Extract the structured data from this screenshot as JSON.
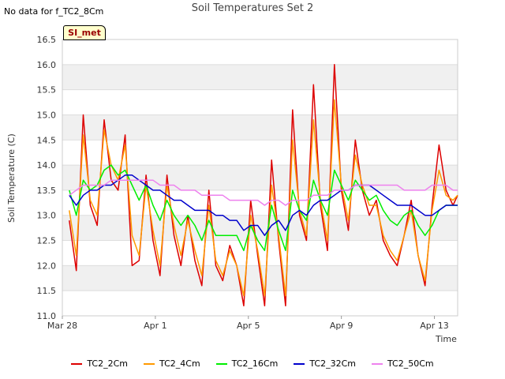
{
  "header": {
    "no_data_text": "No data for f_TC2_8Cm",
    "site_badge": "SI_met"
  },
  "chart_data": {
    "type": "line",
    "title": "Soil Temperatures Set 2",
    "xlabel": "Time",
    "ylabel": "Soil Temperature (C)",
    "ylim": [
      11.0,
      16.5
    ],
    "xlim_days": [
      0,
      17
    ],
    "yticks": [
      "11.0",
      "11.5",
      "12.0",
      "12.5",
      "13.0",
      "13.5",
      "14.0",
      "14.5",
      "15.0",
      "15.5",
      "16.0",
      "16.5"
    ],
    "xticks": [
      {
        "day": 0,
        "label": "Mar 28"
      },
      {
        "day": 4,
        "label": "Apr 1"
      },
      {
        "day": 8,
        "label": "Apr 5"
      },
      {
        "day": 12,
        "label": "Apr 9"
      },
      {
        "day": 16,
        "label": "Apr 13"
      }
    ],
    "grid": true,
    "legend_position": "bottom",
    "x_days": [
      0.3,
      0.6,
      0.9,
      1.2,
      1.5,
      1.8,
      2.1,
      2.4,
      2.7,
      3.0,
      3.3,
      3.6,
      3.9,
      4.2,
      4.5,
      4.8,
      5.1,
      5.4,
      5.7,
      6.0,
      6.3,
      6.6,
      6.9,
      7.2,
      7.5,
      7.8,
      8.1,
      8.4,
      8.7,
      9.0,
      9.3,
      9.6,
      9.9,
      10.2,
      10.5,
      10.8,
      11.1,
      11.4,
      11.7,
      12.0,
      12.3,
      12.6,
      12.9,
      13.2,
      13.5,
      13.8,
      14.1,
      14.4,
      14.7,
      15.0,
      15.3,
      15.6,
      15.9,
      16.2,
      16.5,
      16.8,
      17.0
    ],
    "series": [
      {
        "name": "TC2_2Cm",
        "color": "#dd0000",
        "values": [
          12.9,
          11.9,
          15.0,
          13.2,
          12.8,
          14.9,
          13.7,
          13.5,
          14.6,
          12.0,
          12.1,
          13.8,
          12.5,
          11.8,
          13.8,
          12.6,
          12.0,
          13.0,
          12.1,
          11.6,
          13.5,
          12.0,
          11.7,
          12.4,
          12.0,
          11.2,
          13.3,
          12.2,
          11.2,
          14.1,
          12.5,
          11.2,
          15.1,
          13.0,
          12.5,
          15.6,
          13.2,
          12.3,
          16.0,
          13.5,
          12.7,
          14.5,
          13.5,
          13.0,
          13.3,
          12.5,
          12.2,
          12.0,
          12.6,
          13.3,
          12.2,
          11.6,
          13.2,
          14.4,
          13.5,
          13.2,
          13.4
        ]
      },
      {
        "name": "TC2_4Cm",
        "color": "#ff9900",
        "values": [
          13.1,
          12.2,
          14.6,
          13.3,
          13.0,
          14.7,
          14.0,
          13.7,
          14.4,
          12.6,
          12.2,
          13.6,
          12.7,
          12.0,
          13.6,
          12.8,
          12.2,
          12.9,
          12.3,
          11.8,
          13.2,
          12.1,
          11.8,
          12.3,
          12.0,
          11.4,
          13.0,
          12.3,
          11.4,
          13.6,
          12.6,
          11.4,
          14.5,
          13.1,
          12.6,
          14.9,
          13.3,
          12.5,
          15.3,
          13.6,
          12.9,
          14.2,
          13.6,
          13.2,
          13.2,
          12.6,
          12.3,
          12.1,
          12.6,
          13.1,
          12.2,
          11.7,
          13.1,
          13.9,
          13.4,
          13.3,
          13.4
        ]
      },
      {
        "name": "TC2_16Cm",
        "color": "#00ee00",
        "values": [
          13.5,
          13.0,
          13.7,
          13.5,
          13.6,
          13.9,
          14.0,
          13.8,
          13.9,
          13.6,
          13.3,
          13.6,
          13.2,
          12.9,
          13.3,
          13.0,
          12.8,
          13.0,
          12.8,
          12.5,
          12.9,
          12.6,
          12.6,
          12.6,
          12.6,
          12.3,
          12.8,
          12.5,
          12.3,
          13.2,
          12.7,
          12.3,
          13.5,
          13.1,
          12.9,
          13.7,
          13.3,
          13.0,
          13.9,
          13.6,
          13.3,
          13.7,
          13.5,
          13.3,
          13.4,
          13.1,
          12.9,
          12.8,
          13.0,
          13.1,
          12.8,
          12.6,
          12.8,
          13.1,
          13.2,
          13.2,
          13.2
        ]
      },
      {
        "name": "TC2_32Cm",
        "color": "#0000cc",
        "values": [
          13.4,
          13.2,
          13.4,
          13.5,
          13.5,
          13.6,
          13.6,
          13.7,
          13.8,
          13.8,
          13.7,
          13.6,
          13.5,
          13.5,
          13.4,
          13.3,
          13.3,
          13.2,
          13.1,
          13.1,
          13.1,
          13.0,
          13.0,
          12.9,
          12.9,
          12.7,
          12.8,
          12.8,
          12.6,
          12.8,
          12.9,
          12.7,
          13.0,
          13.1,
          13.0,
          13.2,
          13.3,
          13.3,
          13.4,
          13.5,
          13.5,
          13.6,
          13.6,
          13.6,
          13.5,
          13.4,
          13.3,
          13.2,
          13.2,
          13.2,
          13.1,
          13.0,
          13.0,
          13.1,
          13.2,
          13.2,
          13.2
        ]
      },
      {
        "name": "TC2_50Cm",
        "color": "#ee82ee",
        "values": [
          13.4,
          13.5,
          13.6,
          13.6,
          13.6,
          13.6,
          13.7,
          13.7,
          13.7,
          13.7,
          13.7,
          13.7,
          13.7,
          13.6,
          13.6,
          13.6,
          13.5,
          13.5,
          13.5,
          13.4,
          13.4,
          13.4,
          13.4,
          13.3,
          13.3,
          13.3,
          13.3,
          13.3,
          13.2,
          13.3,
          13.3,
          13.2,
          13.3,
          13.3,
          13.3,
          13.4,
          13.4,
          13.4,
          13.5,
          13.5,
          13.5,
          13.6,
          13.6,
          13.6,
          13.6,
          13.6,
          13.6,
          13.6,
          13.5,
          13.5,
          13.5,
          13.5,
          13.6,
          13.6,
          13.6,
          13.5,
          13.5
        ]
      }
    ]
  }
}
